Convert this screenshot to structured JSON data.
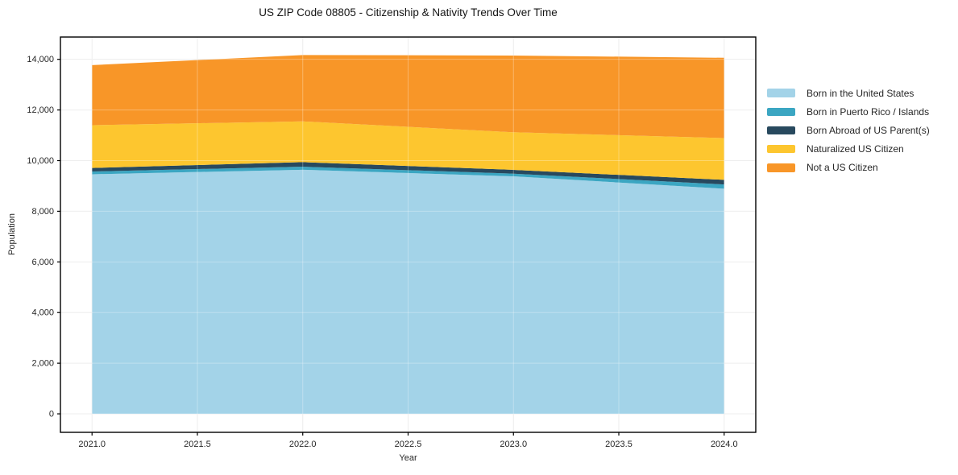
{
  "figure": {
    "title": "US ZIP Code 08805 - Citizenship & Nativity Trends Over Time",
    "xlabel": "Year",
    "ylabel": "Population"
  },
  "chart_data": {
    "type": "area",
    "stacked": true,
    "title": "US ZIP Code 08805 - Citizenship & Nativity Trends Over Time",
    "xlabel": "Year",
    "ylabel": "Population",
    "x": [
      2021,
      2022,
      2023,
      2024
    ],
    "series": [
      {
        "name": "Born in the United States",
        "color": "#a3d3e8",
        "values": [
          9460,
          9640,
          9380,
          8890
        ]
      },
      {
        "name": "Born in Puerto Rico / Islands",
        "color": "#3ba6c2",
        "values": [
          110,
          120,
          105,
          170
        ]
      },
      {
        "name": "Born Abroad of US Parent(s)",
        "color": "#28495e",
        "values": [
          140,
          180,
          150,
          180
        ]
      },
      {
        "name": "Naturalized US Citizen",
        "color": "#fdc62f",
        "values": [
          1690,
          1610,
          1485,
          1650
        ]
      },
      {
        "name": "Not a US Citizen",
        "color": "#f89628",
        "values": [
          2370,
          2620,
          3030,
          3170
        ]
      }
    ],
    "totals_by_year": [
      13770,
      14170,
      14150,
      14060
    ],
    "xlim": [
      2020.85,
      2024.15
    ],
    "ylim": [
      -730,
      14880
    ],
    "x_ticks": [
      {
        "v": 2021.0,
        "label": "2021.0"
      },
      {
        "v": 2021.5,
        "label": "2021.5"
      },
      {
        "v": 2022.0,
        "label": "2022.0"
      },
      {
        "v": 2022.5,
        "label": "2022.5"
      },
      {
        "v": 2023.0,
        "label": "2023.0"
      },
      {
        "v": 2023.5,
        "label": "2023.5"
      },
      {
        "v": 2024.0,
        "label": "2024.0"
      }
    ],
    "y_ticks": [
      {
        "v": 0,
        "label": "0"
      },
      {
        "v": 2000,
        "label": "2,000"
      },
      {
        "v": 4000,
        "label": "4,000"
      },
      {
        "v": 6000,
        "label": "6,000"
      },
      {
        "v": 8000,
        "label": "8,000"
      },
      {
        "v": 10000,
        "label": "10,000"
      },
      {
        "v": 12000,
        "label": "12,000"
      },
      {
        "v": 14000,
        "label": "14,000"
      }
    ],
    "grid": true,
    "legend_position": "right",
    "colors": {
      "grid_under": "#e7e7e7",
      "grid_over": "rgba(255,255,255,0.30)",
      "spine": "#000000",
      "tick": "#000000",
      "tick_label": "#262626"
    }
  }
}
